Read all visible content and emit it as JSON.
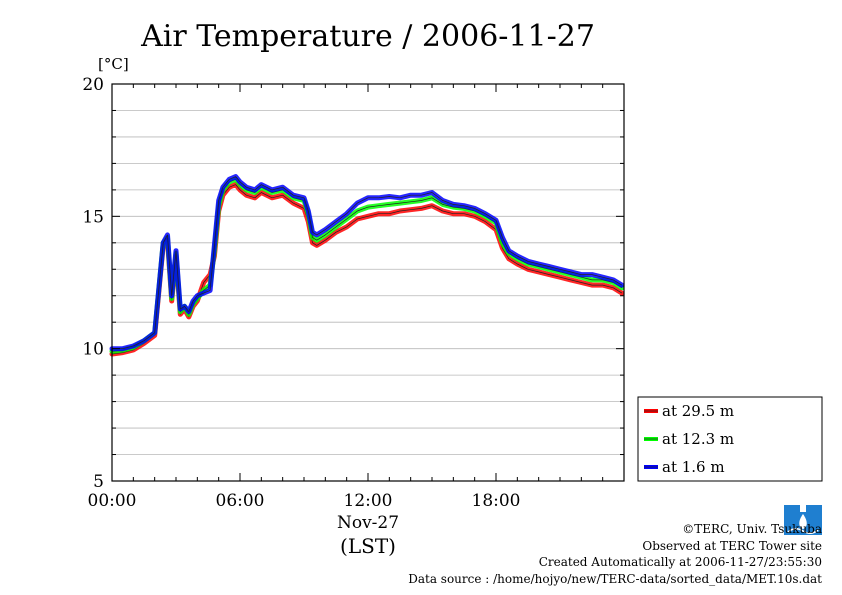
{
  "chart_data": {
    "type": "line",
    "title": "Air Temperature / 2006-11-27",
    "ylabel": "[°C]",
    "xlabel": "(LST)",
    "date_label": "Nov-27",
    "xlim": [
      0,
      24
    ],
    "ylim": [
      5,
      20
    ],
    "x_ticks": [
      {
        "value": 0,
        "label": "00:00"
      },
      {
        "value": 6,
        "label": "06:00"
      },
      {
        "value": 12,
        "label": "12:00"
      },
      {
        "value": 18,
        "label": "18:00"
      }
    ],
    "y_ticks": [
      {
        "value": 5,
        "label": "5"
      },
      {
        "value": 10,
        "label": "10"
      },
      {
        "value": 15,
        "label": "15"
      },
      {
        "value": 20,
        "label": "20"
      }
    ],
    "grid": true,
    "legend_position": "right, bottom",
    "x": [
      0,
      0.5,
      1.0,
      1.5,
      2.0,
      2.4,
      2.6,
      2.8,
      3.0,
      3.2,
      3.4,
      3.6,
      3.8,
      4.0,
      4.3,
      4.6,
      4.8,
      5.0,
      5.2,
      5.5,
      5.8,
      6.0,
      6.3,
      6.7,
      7.0,
      7.5,
      8.0,
      8.5,
      9.0,
      9.2,
      9.4,
      9.6,
      10.0,
      10.5,
      11.0,
      11.5,
      12.0,
      12.5,
      13.0,
      13.5,
      14.0,
      14.5,
      15.0,
      15.5,
      16.0,
      16.5,
      17.0,
      17.5,
      18.0,
      18.3,
      18.6,
      19.0,
      19.5,
      20.0,
      20.5,
      21.0,
      21.5,
      22.0,
      22.5,
      23.0,
      23.5,
      23.9
    ],
    "series": [
      {
        "name": "at 29.5 m",
        "color": "#ff0000",
        "values": [
          9.8,
          9.85,
          9.95,
          10.2,
          10.5,
          13.9,
          14.1,
          11.8,
          13.5,
          11.3,
          11.5,
          11.2,
          11.6,
          11.8,
          12.5,
          12.8,
          13.5,
          15.2,
          15.8,
          16.1,
          16.2,
          16.0,
          15.8,
          15.7,
          15.9,
          15.7,
          15.8,
          15.5,
          15.3,
          14.8,
          14.0,
          13.9,
          14.1,
          14.4,
          14.6,
          14.9,
          15.0,
          15.1,
          15.1,
          15.2,
          15.25,
          15.3,
          15.4,
          15.2,
          15.1,
          15.1,
          15.0,
          14.8,
          14.5,
          13.8,
          13.4,
          13.2,
          13.0,
          12.9,
          12.8,
          12.7,
          12.6,
          12.5,
          12.4,
          12.4,
          12.3,
          12.1
        ]
      },
      {
        "name": "at 12.3 m",
        "color": "#00ff00",
        "values": [
          9.9,
          9.95,
          10.05,
          10.3,
          10.6,
          14.0,
          14.2,
          11.9,
          13.6,
          11.4,
          11.6,
          11.3,
          11.7,
          11.9,
          12.2,
          12.4,
          13.7,
          15.4,
          16.0,
          16.3,
          16.4,
          16.2,
          16.0,
          15.9,
          16.1,
          15.9,
          16.0,
          15.7,
          15.6,
          15.1,
          14.2,
          14.1,
          14.3,
          14.6,
          14.9,
          15.2,
          15.35,
          15.4,
          15.45,
          15.5,
          15.55,
          15.6,
          15.7,
          15.45,
          15.35,
          15.3,
          15.2,
          15.0,
          14.75,
          14.0,
          13.6,
          13.4,
          13.2,
          13.1,
          13.0,
          12.9,
          12.8,
          12.7,
          12.6,
          12.6,
          12.5,
          12.3
        ]
      },
      {
        "name": "at 1.6 m",
        "color": "#0000ff",
        "values": [
          10.0,
          10.0,
          10.1,
          10.3,
          10.6,
          14.0,
          14.3,
          12.0,
          13.7,
          11.5,
          11.6,
          11.4,
          11.8,
          12.0,
          12.1,
          12.2,
          13.9,
          15.6,
          16.1,
          16.4,
          16.5,
          16.3,
          16.1,
          16.0,
          16.2,
          16.0,
          16.1,
          15.8,
          15.7,
          15.2,
          14.4,
          14.3,
          14.5,
          14.8,
          15.1,
          15.5,
          15.7,
          15.7,
          15.75,
          15.7,
          15.8,
          15.8,
          15.9,
          15.6,
          15.45,
          15.4,
          15.3,
          15.1,
          14.85,
          14.2,
          13.7,
          13.5,
          13.3,
          13.2,
          13.1,
          13.0,
          12.9,
          12.8,
          12.8,
          12.7,
          12.6,
          12.4
        ]
      }
    ]
  },
  "credits": {
    "copyright": "©TERC, Univ. Tsukuba",
    "observed": "Observed at TERC Tower site",
    "created": "Created Automatically at 2006-11-27/23:55:30",
    "source": "Data source : /home/hojyo/new/TERC-data/sorted_data/MET.10s.dat",
    "logo_text": "TERC"
  }
}
